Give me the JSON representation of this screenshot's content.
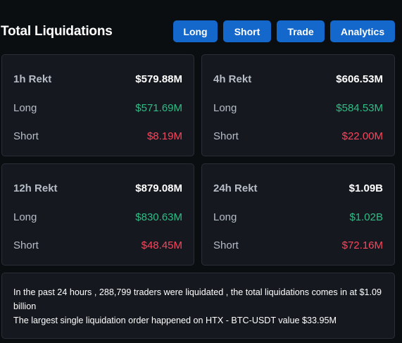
{
  "header": {
    "title": "Total Liquidations",
    "buttons": [
      "Long",
      "Short",
      "Trade",
      "Analytics"
    ]
  },
  "cards": [
    {
      "period": "1h Rekt",
      "total": "$579.88M",
      "long_label": "Long",
      "long": "$571.69M",
      "short_label": "Short",
      "short": "$8.19M"
    },
    {
      "period": "4h Rekt",
      "total": "$606.53M",
      "long_label": "Long",
      "long": "$584.53M",
      "short_label": "Short",
      "short": "$22.00M"
    },
    {
      "period": "12h Rekt",
      "total": "$879.08M",
      "long_label": "Long",
      "long": "$830.63M",
      "short_label": "Short",
      "short": "$48.45M"
    },
    {
      "period": "24h Rekt",
      "total": "$1.09B",
      "long_label": "Long",
      "long": "$1.02B",
      "short_label": "Short",
      "short": "$72.16M"
    }
  ],
  "summary": {
    "line1": "In the past 24 hours , 288,799 traders were liquidated , the total liquidations comes in at $1.09 billion",
    "line2": "The largest single liquidation order happened on HTX - BTC-USDT value $33.95M"
  },
  "colors": {
    "background": "#0b0e11",
    "card": "#15191f",
    "button": "#1468cc",
    "long": "#2ebd85",
    "short": "#f6465d"
  }
}
